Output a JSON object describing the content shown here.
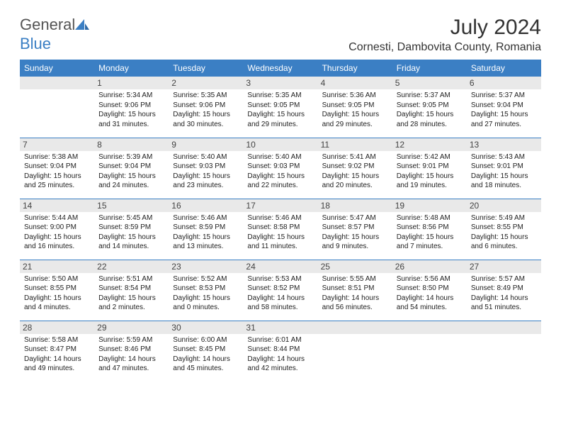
{
  "logo": {
    "word1": "General",
    "word2": "Blue"
  },
  "title": "July 2024",
  "location": "Cornesti, Dambovita County, Romania",
  "colors": {
    "header_bg": "#3b7fc4",
    "header_text": "#ffffff",
    "daynum_bg": "#e9e9e9",
    "rule": "#3b7fc4",
    "body_text": "#222222",
    "logo_gray": "#555555",
    "logo_blue": "#3b7fc4",
    "page_bg": "#ffffff"
  },
  "fonts": {
    "title_size_pt": 22,
    "location_size_pt": 12,
    "day_header_size_pt": 9,
    "daynum_size_pt": 9,
    "cell_size_pt": 7.5
  },
  "day_headers": [
    "Sunday",
    "Monday",
    "Tuesday",
    "Wednesday",
    "Thursday",
    "Friday",
    "Saturday"
  ],
  "weeks": [
    [
      {
        "n": "",
        "sunrise": "",
        "sunset": "",
        "daylight": ""
      },
      {
        "n": "1",
        "sunrise": "Sunrise: 5:34 AM",
        "sunset": "Sunset: 9:06 PM",
        "daylight": "Daylight: 15 hours and 31 minutes."
      },
      {
        "n": "2",
        "sunrise": "Sunrise: 5:35 AM",
        "sunset": "Sunset: 9:06 PM",
        "daylight": "Daylight: 15 hours and 30 minutes."
      },
      {
        "n": "3",
        "sunrise": "Sunrise: 5:35 AM",
        "sunset": "Sunset: 9:05 PM",
        "daylight": "Daylight: 15 hours and 29 minutes."
      },
      {
        "n": "4",
        "sunrise": "Sunrise: 5:36 AM",
        "sunset": "Sunset: 9:05 PM",
        "daylight": "Daylight: 15 hours and 29 minutes."
      },
      {
        "n": "5",
        "sunrise": "Sunrise: 5:37 AM",
        "sunset": "Sunset: 9:05 PM",
        "daylight": "Daylight: 15 hours and 28 minutes."
      },
      {
        "n": "6",
        "sunrise": "Sunrise: 5:37 AM",
        "sunset": "Sunset: 9:04 PM",
        "daylight": "Daylight: 15 hours and 27 minutes."
      }
    ],
    [
      {
        "n": "7",
        "sunrise": "Sunrise: 5:38 AM",
        "sunset": "Sunset: 9:04 PM",
        "daylight": "Daylight: 15 hours and 25 minutes."
      },
      {
        "n": "8",
        "sunrise": "Sunrise: 5:39 AM",
        "sunset": "Sunset: 9:04 PM",
        "daylight": "Daylight: 15 hours and 24 minutes."
      },
      {
        "n": "9",
        "sunrise": "Sunrise: 5:40 AM",
        "sunset": "Sunset: 9:03 PM",
        "daylight": "Daylight: 15 hours and 23 minutes."
      },
      {
        "n": "10",
        "sunrise": "Sunrise: 5:40 AM",
        "sunset": "Sunset: 9:03 PM",
        "daylight": "Daylight: 15 hours and 22 minutes."
      },
      {
        "n": "11",
        "sunrise": "Sunrise: 5:41 AM",
        "sunset": "Sunset: 9:02 PM",
        "daylight": "Daylight: 15 hours and 20 minutes."
      },
      {
        "n": "12",
        "sunrise": "Sunrise: 5:42 AM",
        "sunset": "Sunset: 9:01 PM",
        "daylight": "Daylight: 15 hours and 19 minutes."
      },
      {
        "n": "13",
        "sunrise": "Sunrise: 5:43 AM",
        "sunset": "Sunset: 9:01 PM",
        "daylight": "Daylight: 15 hours and 18 minutes."
      }
    ],
    [
      {
        "n": "14",
        "sunrise": "Sunrise: 5:44 AM",
        "sunset": "Sunset: 9:00 PM",
        "daylight": "Daylight: 15 hours and 16 minutes."
      },
      {
        "n": "15",
        "sunrise": "Sunrise: 5:45 AM",
        "sunset": "Sunset: 8:59 PM",
        "daylight": "Daylight: 15 hours and 14 minutes."
      },
      {
        "n": "16",
        "sunrise": "Sunrise: 5:46 AM",
        "sunset": "Sunset: 8:59 PM",
        "daylight": "Daylight: 15 hours and 13 minutes."
      },
      {
        "n": "17",
        "sunrise": "Sunrise: 5:46 AM",
        "sunset": "Sunset: 8:58 PM",
        "daylight": "Daylight: 15 hours and 11 minutes."
      },
      {
        "n": "18",
        "sunrise": "Sunrise: 5:47 AM",
        "sunset": "Sunset: 8:57 PM",
        "daylight": "Daylight: 15 hours and 9 minutes."
      },
      {
        "n": "19",
        "sunrise": "Sunrise: 5:48 AM",
        "sunset": "Sunset: 8:56 PM",
        "daylight": "Daylight: 15 hours and 7 minutes."
      },
      {
        "n": "20",
        "sunrise": "Sunrise: 5:49 AM",
        "sunset": "Sunset: 8:55 PM",
        "daylight": "Daylight: 15 hours and 6 minutes."
      }
    ],
    [
      {
        "n": "21",
        "sunrise": "Sunrise: 5:50 AM",
        "sunset": "Sunset: 8:55 PM",
        "daylight": "Daylight: 15 hours and 4 minutes."
      },
      {
        "n": "22",
        "sunrise": "Sunrise: 5:51 AM",
        "sunset": "Sunset: 8:54 PM",
        "daylight": "Daylight: 15 hours and 2 minutes."
      },
      {
        "n": "23",
        "sunrise": "Sunrise: 5:52 AM",
        "sunset": "Sunset: 8:53 PM",
        "daylight": "Daylight: 15 hours and 0 minutes."
      },
      {
        "n": "24",
        "sunrise": "Sunrise: 5:53 AM",
        "sunset": "Sunset: 8:52 PM",
        "daylight": "Daylight: 14 hours and 58 minutes."
      },
      {
        "n": "25",
        "sunrise": "Sunrise: 5:55 AM",
        "sunset": "Sunset: 8:51 PM",
        "daylight": "Daylight: 14 hours and 56 minutes."
      },
      {
        "n": "26",
        "sunrise": "Sunrise: 5:56 AM",
        "sunset": "Sunset: 8:50 PM",
        "daylight": "Daylight: 14 hours and 54 minutes."
      },
      {
        "n": "27",
        "sunrise": "Sunrise: 5:57 AM",
        "sunset": "Sunset: 8:49 PM",
        "daylight": "Daylight: 14 hours and 51 minutes."
      }
    ],
    [
      {
        "n": "28",
        "sunrise": "Sunrise: 5:58 AM",
        "sunset": "Sunset: 8:47 PM",
        "daylight": "Daylight: 14 hours and 49 minutes."
      },
      {
        "n": "29",
        "sunrise": "Sunrise: 5:59 AM",
        "sunset": "Sunset: 8:46 PM",
        "daylight": "Daylight: 14 hours and 47 minutes."
      },
      {
        "n": "30",
        "sunrise": "Sunrise: 6:00 AM",
        "sunset": "Sunset: 8:45 PM",
        "daylight": "Daylight: 14 hours and 45 minutes."
      },
      {
        "n": "31",
        "sunrise": "Sunrise: 6:01 AM",
        "sunset": "Sunset: 8:44 PM",
        "daylight": "Daylight: 14 hours and 42 minutes."
      },
      {
        "n": "",
        "sunrise": "",
        "sunset": "",
        "daylight": ""
      },
      {
        "n": "",
        "sunrise": "",
        "sunset": "",
        "daylight": ""
      },
      {
        "n": "",
        "sunrise": "",
        "sunset": "",
        "daylight": ""
      }
    ]
  ]
}
